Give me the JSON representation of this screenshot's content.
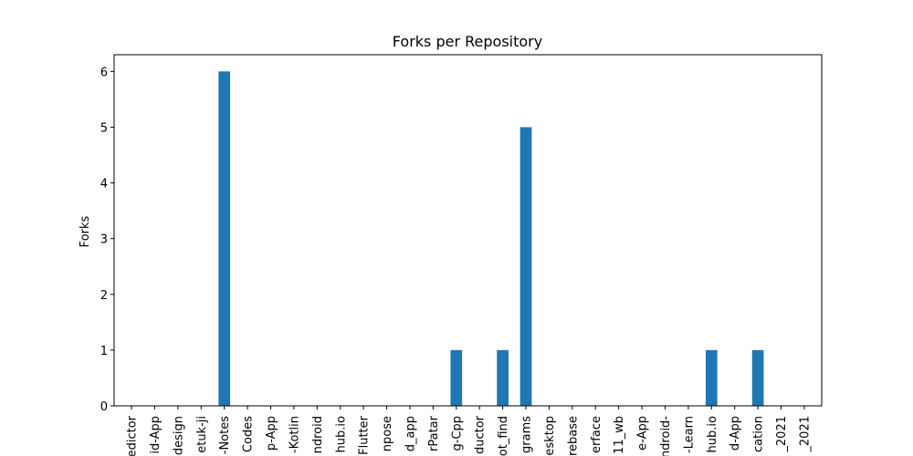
{
  "chart_data": {
    "type": "bar",
    "title": "Forks per Repository",
    "xlabel": "",
    "ylabel": "Forks",
    "ylim": [
      0,
      6.3
    ],
    "yticks": [
      0,
      1,
      2,
      3,
      4,
      5,
      6
    ],
    "bar_color": "#1f77b4",
    "grid": false,
    "categories": [
      "edictor",
      "id-App",
      "design",
      "etuk-ji",
      "-Notes",
      "Codes",
      "p-App",
      "-Kotlin",
      "ndroid",
      "hub.io",
      "Flutter",
      "npose",
      "d_app",
      "rPatar",
      "g-Cpp",
      "ductor",
      "ot_find",
      "grams",
      "esktop",
      "rebase",
      "erface",
      "11_wb",
      "e-App",
      "ndroid-",
      "-Learn",
      "hub.io",
      "d-App",
      "cation",
      "_2021",
      "_2021"
    ],
    "values": [
      0,
      0,
      0,
      0,
      6,
      0,
      0,
      0,
      0,
      0,
      0,
      0,
      0,
      0,
      1,
      0,
      1,
      5,
      0,
      0,
      0,
      0,
      0,
      0,
      0,
      1,
      0,
      1,
      0,
      0
    ]
  }
}
